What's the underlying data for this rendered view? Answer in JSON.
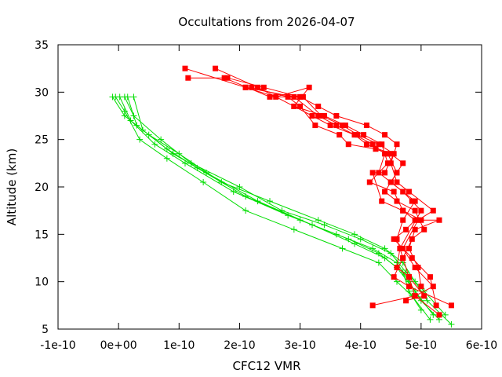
{
  "chart_data": {
    "type": "line",
    "title": "Occultations from 2026-04-07",
    "xlabel": "CFC12 VMR",
    "ylabel": "Altitude (km)",
    "xlim": [
      -1e-10,
      6e-10
    ],
    "ylim": [
      5,
      35
    ],
    "xticks": [
      -1e-10,
      0,
      1e-10,
      2e-10,
      3e-10,
      4e-10,
      5e-10,
      6e-10
    ],
    "xtick_labels": [
      "-1e-10",
      "0e+00",
      "1e-10",
      "2e-10",
      "3e-10",
      "4e-10",
      "5e-10",
      "6e-10"
    ],
    "yticks": [
      5,
      10,
      15,
      20,
      25,
      30,
      35
    ],
    "ytick_labels": [
      "5",
      "10",
      "15",
      "20",
      "25",
      "30",
      "35"
    ],
    "grid": false,
    "legend": "none",
    "series": [
      {
        "name": "red-1",
        "color": "#ff0000",
        "marker": "square",
        "x": [
          1.1e-10,
          2.1e-10,
          2.9e-10,
          3.3e-10,
          3.6e-10,
          4.2e-10,
          4.4e-10,
          4.3e-10,
          4.5e-10,
          4.9e-10,
          4.7e-10,
          4.6e-10,
          4.7e-10,
          4.8e-10,
          4.9e-10,
          5.3e-10
        ],
        "y": [
          32.5,
          30.5,
          29.5,
          27.5,
          26.5,
          24.5,
          23.5,
          21.5,
          20.5,
          18.5,
          16.5,
          14.5,
          12.5,
          10.5,
          8.5,
          6.5
        ]
      },
      {
        "name": "red-2",
        "color": "#ff0000",
        "marker": "square",
        "x": [
          1.15e-10,
          1.8e-10,
          2.4e-10,
          3e-10,
          3.3e-10,
          3.6e-10,
          4.1e-10,
          4.4e-10,
          4.6e-10,
          4.5e-10,
          4.6e-10,
          4.8e-10,
          5.2e-10,
          4.95e-10,
          4.7e-10,
          4.9e-10,
          5.2e-10,
          4.9e-10,
          4.2e-10
        ],
        "y": [
          31.5,
          31.5,
          30.5,
          29.5,
          28.5,
          27.5,
          26.5,
          25.5,
          24.5,
          22.5,
          20.5,
          19.5,
          17.5,
          16.5,
          13.5,
          11.5,
          9.5,
          8.5,
          7.5
        ]
      },
      {
        "name": "red-3",
        "color": "#ff0000",
        "marker": "square",
        "x": [
          1.6e-10,
          2.3e-10,
          2.9e-10,
          3.2e-10,
          3.5e-10,
          3.9e-10,
          4.1e-10,
          4.5e-10,
          4.7e-10,
          4.6e-10,
          4.4e-10,
          4.6e-10,
          4.9e-10,
          5.05e-10,
          4.85e-10,
          4.7e-10,
          4.55e-10,
          4.8e-10,
          5.5e-10
        ],
        "y": [
          32.5,
          30.5,
          28.5,
          27.5,
          26.5,
          25.5,
          24.5,
          23.5,
          22.5,
          21.5,
          19.5,
          18.5,
          17.5,
          15.5,
          14.5,
          12.5,
          10.5,
          9.5,
          7.5
        ]
      },
      {
        "name": "red-4",
        "color": "#ff0000",
        "marker": "square",
        "x": [
          2.1e-10,
          2.6e-10,
          3.15e-10,
          2.9e-10,
          3.4e-10,
          3.75e-10,
          4.05e-10,
          4.35e-10,
          4.45e-10,
          4.15e-10,
          4.55e-10,
          4.7e-10,
          4.9e-10,
          4.75e-10,
          4.55e-10,
          4.85e-10,
          5.15e-10,
          5.25e-10
        ],
        "y": [
          30.5,
          29.5,
          30.5,
          28.5,
          27.5,
          26.5,
          25.5,
          24.5,
          22.5,
          20.5,
          19.5,
          17.5,
          16.5,
          15.5,
          14.5,
          12.5,
          10.5,
          7.5
        ]
      },
      {
        "name": "red-5",
        "color": "#ff0000",
        "marker": "square",
        "x": [
          1.75e-10,
          2.5e-10,
          3.05e-10,
          3.35e-10,
          3.7e-10,
          3.95e-10,
          4.3e-10,
          4.55e-10,
          4.4e-10,
          4.2e-10,
          4.35e-10,
          4.7e-10,
          5e-10,
          5.3e-10,
          4.9e-10,
          4.8e-10,
          4.95e-10,
          5e-10
        ],
        "y": [
          31.5,
          29.5,
          29.5,
          27.5,
          26.5,
          25.5,
          24.5,
          23.5,
          21.5,
          21.5,
          18.5,
          17.5,
          16.5,
          16.5,
          15.5,
          13.5,
          11.5,
          9.5
        ]
      },
      {
        "name": "red-6",
        "color": "#ff0000",
        "marker": "square",
        "x": [
          2.2e-10,
          2.8e-10,
          3e-10,
          3.25e-10,
          3.65e-10,
          3.8e-10,
          4.25e-10,
          4.45e-10,
          4.6e-10,
          4.5e-10,
          4.7e-10,
          4.85e-10,
          5e-10,
          4.65e-10,
          4.6e-10,
          4.8e-10,
          5.05e-10,
          4.75e-10
        ],
        "y": [
          30.5,
          29.5,
          28.5,
          26.5,
          25.5,
          24.5,
          24.0,
          23.5,
          21.5,
          20.5,
          19.5,
          18.5,
          17.5,
          13.5,
          11.5,
          10.5,
          8.5,
          8.0
        ]
      },
      {
        "name": "green-1",
        "color": "#00dd00",
        "marker": "plus",
        "x": [
          -1e-11,
          1e-11,
          5e-11,
          1e-10,
          1.7e-10,
          2.5e-10,
          3.3e-10,
          3.9e-10,
          4.4e-10,
          4.7e-10,
          4.9e-10,
          5.1e-10,
          5.5e-10
        ],
        "y": [
          29.5,
          27.5,
          25.5,
          23.5,
          20.5,
          18.5,
          16.5,
          15.0,
          13.5,
          12.0,
          10.0,
          8.0,
          5.5
        ]
      },
      {
        "name": "green-2",
        "color": "#00dd00",
        "marker": "plus",
        "x": [
          2e-12,
          2e-11,
          6e-11,
          1.1e-10,
          1.9e-10,
          2.8e-10,
          3.6e-10,
          4.2e-10,
          4.6e-10,
          4.8e-10,
          5e-10,
          5.3e-10
        ],
        "y": [
          29.5,
          27.0,
          24.5,
          22.5,
          19.5,
          17.0,
          15.0,
          13.5,
          12.0,
          10.0,
          8.0,
          6.0
        ]
      },
      {
        "name": "green-3",
        "color": "#00dd00",
        "marker": "plus",
        "x": [
          1.5e-11,
          3e-11,
          8e-11,
          1.3e-10,
          2.1e-10,
          3e-10,
          3.8e-10,
          4.3e-10,
          4.6e-10,
          4.9e-10,
          5.2e-10
        ],
        "y": [
          29.5,
          26.5,
          24.0,
          22.0,
          19.0,
          16.5,
          14.5,
          13.0,
          11.5,
          9.0,
          6.5
        ]
      },
      {
        "name": "green-4",
        "color": "#00dd00",
        "marker": "plus",
        "x": [
          2.5e-11,
          4e-11,
          9e-11,
          1.45e-10,
          2.3e-10,
          3.2e-10,
          3.9e-10,
          4.4e-10,
          4.7e-10,
          4.8e-10,
          5e-10
        ],
        "y": [
          29.5,
          26.0,
          23.5,
          21.5,
          18.5,
          16.0,
          14.0,
          12.5,
          11.0,
          9.0,
          7.0
        ]
      },
      {
        "name": "green-5",
        "color": "#00dd00",
        "marker": "plus",
        "x": [
          -5e-12,
          1e-11,
          3.5e-11,
          8e-11,
          1.4e-10,
          2.1e-10,
          2.9e-10,
          3.7e-10,
          4.3e-10,
          4.6e-10,
          4.85e-10,
          5.15e-10
        ],
        "y": [
          29.5,
          28.0,
          25.0,
          23.0,
          20.5,
          17.5,
          15.5,
          13.5,
          12.0,
          10.0,
          8.5,
          6.0
        ]
      },
      {
        "name": "green-6",
        "color": "#00dd00",
        "marker": "plus",
        "x": [
          1e-11,
          2.5e-11,
          7e-11,
          1.2e-10,
          2e-10,
          2.7e-10,
          3.4e-10,
          4e-10,
          4.5e-10,
          4.75e-10,
          5.05e-10,
          5.4e-10
        ],
        "y": [
          29.5,
          27.5,
          25.0,
          22.5,
          20.0,
          17.5,
          16.0,
          14.5,
          13.0,
          11.0,
          9.0,
          6.5
        ]
      }
    ]
  }
}
